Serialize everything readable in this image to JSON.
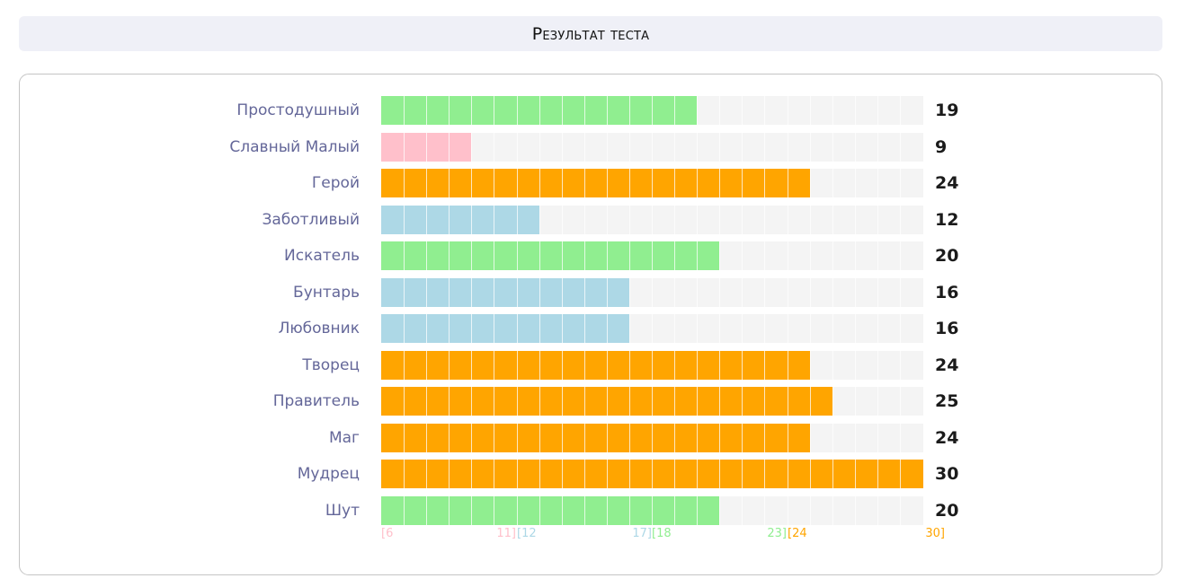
{
  "header": {
    "title": "Результат теста"
  },
  "colors": {
    "pink": "#ffc0cb",
    "blue": "#add8e6",
    "green": "#90ee90",
    "orange": "#ffa500",
    "empty": "#f4f4f4"
  },
  "chart_data": {
    "type": "bar",
    "orientation": "horizontal",
    "categories": [
      "Простодушный",
      "Славный Малый",
      "Герой",
      "Заботливый",
      "Искатель",
      "Бунтарь",
      "Любовник",
      "Творец",
      "Правитель",
      "Маг",
      "Мудрец",
      "Шут"
    ],
    "values": [
      19,
      9,
      24,
      12,
      20,
      16,
      16,
      24,
      25,
      24,
      30,
      20
    ],
    "xlim": [
      6,
      30
    ],
    "ranges": [
      {
        "from": 6,
        "to": 11,
        "color": "#ffc0cb",
        "start_label": "[6",
        "end_label": "11]"
      },
      {
        "from": 12,
        "to": 17,
        "color": "#add8e6",
        "start_label": "[12",
        "end_label": "17]"
      },
      {
        "from": 18,
        "to": 23,
        "color": "#90ee90",
        "start_label": "[18",
        "end_label": "23]"
      },
      {
        "from": 24,
        "to": 30,
        "color": "#ffa500",
        "start_label": "[24",
        "end_label": "30]"
      }
    ]
  }
}
